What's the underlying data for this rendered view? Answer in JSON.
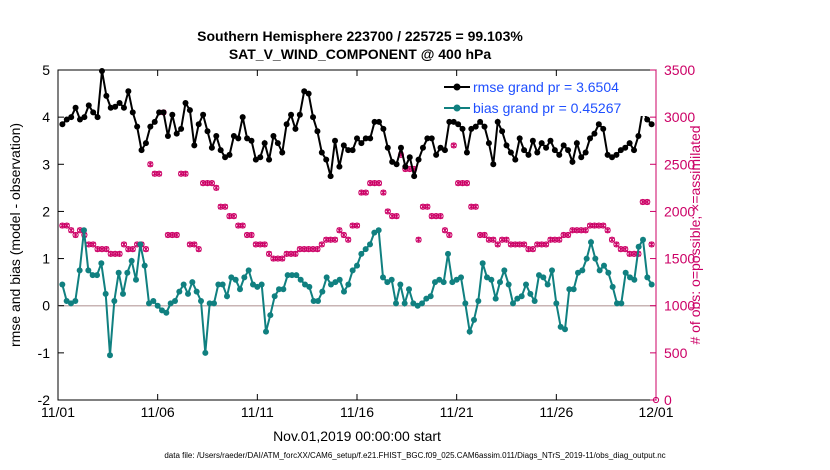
{
  "chart_data": {
    "type": "line",
    "title": "Southern Hemisphere 223700 / 225725 = 99.103%",
    "subtitle": "SAT_V_WIND_COMPONENT @ 400 hPa",
    "xlabel": "Nov.01,2019 00:00:00 start",
    "ylabel_left": "rmse and bias (model - observation)",
    "ylabel_right": "# of obs: o=possible; ×=assimilated",
    "xlim": [
      0,
      30
    ],
    "ylim_left": [
      -2,
      5
    ],
    "ylim_right": [
      0,
      3500
    ],
    "x_ticks": [
      0,
      5,
      10,
      15,
      20,
      25,
      30
    ],
    "x_tick_labels": [
      "11/01",
      "11/06",
      "11/11",
      "11/16",
      "11/21",
      "11/26",
      "12/01"
    ],
    "y_ticks_left": [
      -2,
      -1,
      0,
      1,
      2,
      3,
      4,
      5
    ],
    "y_ticks_right": [
      0,
      500,
      1000,
      1500,
      2000,
      2500,
      3000,
      3500
    ],
    "colors": {
      "rmse": "#000000",
      "bias": "#108080",
      "obs": "#cc0066",
      "zero_line": "#c8b4b4"
    },
    "series": [
      {
        "name": "rmse",
        "legend": "rmse grand pr = 3.6504",
        "values": [
          3.85,
          3.95,
          4.0,
          4.2,
          3.95,
          4.0,
          4.25,
          4.1,
          4.0,
          4.98,
          4.45,
          4.2,
          4.22,
          4.3,
          4.2,
          4.55,
          4.1,
          3.8,
          3.3,
          3.45,
          3.8,
          3.9,
          4.1,
          4.1,
          3.6,
          4.05,
          3.65,
          3.75,
          4.3,
          4.15,
          3.4,
          3.85,
          4.05,
          3.7,
          3.35,
          3.6,
          3.3,
          3.15,
          3.2,
          3.6,
          3.55,
          4.0,
          3.55,
          3.5,
          3.1,
          3.15,
          3.45,
          3.1,
          3.6,
          3.45,
          3.25,
          3.85,
          4.05,
          3.75,
          4.05,
          4.55,
          4.5,
          4.0,
          3.7,
          3.25,
          3.1,
          2.75,
          3.5,
          2.95,
          3.4,
          3.3,
          3.3,
          3.55,
          3.45,
          3.55,
          3.55,
          3.9,
          3.9,
          3.75,
          3.35,
          3.05,
          3.0,
          3.35,
          2.95,
          3.15,
          2.75,
          3.1,
          3.35,
          3.55,
          3.55,
          3.2,
          3.35,
          3.3,
          3.9,
          3.9,
          3.85,
          3.75,
          3.25,
          3.75,
          3.8,
          3.9,
          3.8,
          3.45,
          3.0,
          3.9,
          3.7,
          3.4,
          3.25,
          3.1,
          3.55,
          3.3,
          3.2,
          3.5,
          3.25,
          3.45,
          3.35,
          3.5,
          3.3,
          3.2,
          3.4,
          3.3,
          3.05,
          3.45,
          3.15,
          3.25,
          3.55,
          3.65,
          3.85,
          3.75,
          3.2,
          3.15,
          3.2,
          3.3,
          3.35,
          3.45,
          3.3,
          3.6,
          4.15,
          3.95,
          3.85
        ]
      },
      {
        "name": "bias",
        "legend": "bias grand pr = 0.45267",
        "values": [
          0.45,
          0.1,
          0.05,
          0.1,
          0.75,
          1.6,
          0.75,
          0.65,
          0.65,
          0.9,
          0.25,
          -1.05,
          0.1,
          0.7,
          0.25,
          0.7,
          0.95,
          0.55,
          1.3,
          0.85,
          0.05,
          0.1,
          0.0,
          -0.1,
          -0.15,
          0.05,
          0.1,
          0.3,
          0.45,
          0.25,
          0.5,
          0.3,
          0.1,
          -1.0,
          0.05,
          0.05,
          0.45,
          0.45,
          0.2,
          0.6,
          0.55,
          0.35,
          0.6,
          0.75,
          0.45,
          0.4,
          0.45,
          -0.55,
          -0.2,
          0.2,
          0.35,
          0.35,
          0.65,
          0.65,
          0.65,
          0.55,
          0.45,
          0.4,
          0.1,
          0.1,
          0.3,
          0.6,
          0.45,
          0.5,
          0.55,
          0.3,
          0.45,
          0.75,
          0.85,
          1.1,
          1.2,
          1.3,
          1.55,
          1.6,
          0.6,
          0.5,
          0.55,
          0.05,
          0.45,
          0.05,
          0.35,
          0.05,
          0.0,
          0.05,
          0.15,
          0.2,
          0.5,
          0.55,
          0.5,
          1.1,
          0.5,
          0.55,
          0.6,
          0.05,
          -0.55,
          -0.3,
          0.1,
          0.9,
          0.6,
          0.55,
          0.15,
          0.5,
          0.75,
          0.45,
          0.05,
          0.15,
          0.2,
          0.45,
          0.25,
          0.1,
          0.65,
          0.6,
          0.45,
          0.75,
          0.05,
          -0.45,
          -0.5,
          0.35,
          0.35,
          0.7,
          0.75,
          1.0,
          1.35,
          1.0,
          0.75,
          0.85,
          0.7,
          0.4,
          0.05,
          0.05,
          0.7,
          0.6,
          0.55,
          1.25,
          1.4,
          0.6,
          0.45
        ]
      },
      {
        "name": "obs_possible",
        "axis": "right",
        "marker": "o",
        "values": [
          1850,
          1850,
          1800,
          1750,
          1800,
          1750,
          1650,
          1650,
          1600,
          1600,
          1600,
          1550,
          1550,
          1550,
          1650,
          1600,
          1600,
          1650,
          1650,
          1600,
          2500,
          2400,
          2400,
          3050,
          1750,
          1750,
          1750,
          2400,
          2400,
          1650,
          1650,
          1600,
          2300,
          2300,
          2300,
          2250,
          2050,
          2050,
          1950,
          1950,
          1850,
          1850,
          1750,
          1750,
          1650,
          1650,
          1650,
          1550,
          1500,
          1500,
          1500,
          1550,
          1550,
          1550,
          1600,
          1600,
          1600,
          1600,
          1600,
          1650,
          1700,
          1700,
          1700,
          1800,
          1750,
          1700,
          1850,
          1850,
          2200,
          2200,
          2300,
          2300,
          2300,
          2200,
          2000,
          1950,
          1950,
          2600,
          2450,
          2450,
          2450,
          1700,
          2050,
          2050,
          1950,
          1950,
          1950,
          1800,
          1750,
          2700,
          2300,
          2300,
          2300,
          2050,
          2050,
          1750,
          1750,
          1700,
          1700,
          1650,
          1700,
          1700,
          1650,
          1650,
          1650,
          1650,
          1600,
          1600,
          1650,
          1650,
          1650,
          1700,
          1700,
          1700,
          1750,
          1750,
          1800,
          1800,
          1800,
          1800,
          1850,
          1850,
          1850,
          1850,
          1800,
          1700,
          1650,
          1600,
          1600,
          1550,
          1550,
          1550,
          2100,
          2100,
          1650
        ]
      },
      {
        "name": "obs_assimilated",
        "axis": "right",
        "marker": "x",
        "values": [
          1850,
          1850,
          1800,
          1750,
          1800,
          1750,
          1650,
          1650,
          1600,
          1600,
          1600,
          1550,
          1550,
          1550,
          1650,
          1600,
          1600,
          1650,
          1650,
          1600,
          2500,
          2400,
          2400,
          3050,
          1750,
          1750,
          1750,
          2400,
          2400,
          1650,
          1650,
          1600,
          2300,
          2300,
          2300,
          2250,
          2050,
          2050,
          1950,
          1950,
          1850,
          1850,
          1750,
          1750,
          1650,
          1650,
          1650,
          1550,
          1500,
          1500,
          1500,
          1550,
          1550,
          1550,
          1600,
          1600,
          1600,
          1600,
          1600,
          1650,
          1700,
          1700,
          1700,
          1800,
          1750,
          1700,
          1850,
          1850,
          2200,
          2200,
          2300,
          2300,
          2300,
          2200,
          2000,
          1950,
          1950,
          2600,
          2450,
          2450,
          2450,
          1700,
          2050,
          2050,
          1950,
          1950,
          1950,
          1800,
          1750,
          2700,
          2300,
          2300,
          2300,
          2050,
          2050,
          1750,
          1750,
          1700,
          1700,
          1650,
          1700,
          1700,
          1650,
          1650,
          1650,
          1650,
          1600,
          1600,
          1650,
          1650,
          1650,
          1700,
          1700,
          1700,
          1750,
          1750,
          1800,
          1800,
          1800,
          1800,
          1850,
          1850,
          1850,
          1850,
          1800,
          1700,
          1650,
          1600,
          1600,
          1550,
          1550,
          1550,
          2100,
          2100,
          1650
        ]
      }
    ]
  },
  "footer": {
    "data_file": "data file: /Users/raeder/DAI/ATM_forcXX/CAM6_setup/f.e21.FHIST_BGC.f09_025.CAM6assim.011/Diags_NTrS_2019-11/obs_diag_output.nc"
  }
}
